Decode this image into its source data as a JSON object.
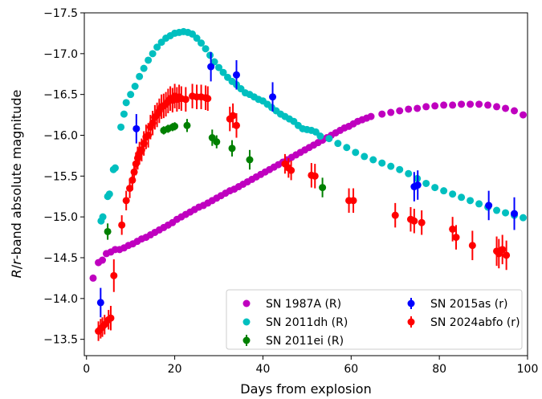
{
  "chart_data": {
    "type": "scatter",
    "xlabel": "Days from explosion",
    "ylabel_prefix": "R",
    "ylabel_sep": "/",
    "ylabel_band": "r",
    "ylabel_suffix": "-band absolute magnitude",
    "xlim": [
      -0.5,
      100
    ],
    "ylim": [
      -13.3,
      -17.5
    ],
    "y_inverted": true,
    "x_ticks": [
      0,
      20,
      40,
      60,
      80,
      100
    ],
    "x_tick_labels": [
      "0",
      "20",
      "40",
      "60",
      "80",
      "100"
    ],
    "y_ticks": [
      -13.5,
      -14.0,
      -14.5,
      -15.0,
      -15.5,
      -16.0,
      -16.5,
      -17.0,
      -17.5
    ],
    "y_tick_labels": [
      "−13.5",
      "−14.0",
      "−14.5",
      "−15.0",
      "−15.5",
      "−16.0",
      "−16.5",
      "−17.0",
      "−17.5"
    ],
    "grid": false,
    "legend_position": "lower-right",
    "series": [
      {
        "name": "SN 1987A (R)",
        "color": "#bf00bf",
        "x": [
          1.5,
          2.7,
          3.6,
          4.5,
          5.5,
          6.5,
          7.5,
          8.5,
          9.5,
          10.5,
          11.5,
          12.5,
          13.5,
          14.5,
          15.5,
          16.5,
          17.5,
          18.5,
          19.5,
          20.5,
          21.5,
          22.5,
          23.5,
          24.5,
          25.5,
          26.5,
          27.5,
          28.5,
          29.5,
          30.5,
          31.5,
          32.5,
          33.5,
          34.5,
          35.5,
          36.5,
          37.5,
          38.5,
          39.5,
          40.5,
          41.5,
          42.5,
          43.5,
          44.5,
          45.5,
          46.5,
          47.5,
          48.5,
          49.5,
          50.5,
          51.5,
          52.5,
          53.5,
          54.5,
          55.5,
          56.5,
          57.5,
          58.5,
          59.5,
          60.5,
          61.5,
          62.5,
          63.5,
          64.5,
          67,
          69,
          71,
          73,
          75,
          77,
          79,
          81,
          83,
          85,
          87,
          89,
          91,
          93,
          95,
          97,
          99
        ],
        "y": [
          -14.25,
          -14.44,
          -14.47,
          -14.55,
          -14.57,
          -14.6,
          -14.6,
          -14.62,
          -14.65,
          -14.67,
          -14.7,
          -14.73,
          -14.75,
          -14.78,
          -14.81,
          -14.84,
          -14.87,
          -14.9,
          -14.93,
          -14.97,
          -15.0,
          -15.03,
          -15.06,
          -15.09,
          -15.12,
          -15.14,
          -15.17,
          -15.2,
          -15.23,
          -15.26,
          -15.29,
          -15.32,
          -15.34,
          -15.37,
          -15.4,
          -15.43,
          -15.46,
          -15.49,
          -15.52,
          -15.55,
          -15.58,
          -15.61,
          -15.64,
          -15.67,
          -15.7,
          -15.73,
          -15.76,
          -15.79,
          -15.82,
          -15.85,
          -15.88,
          -15.91,
          -15.94,
          -15.97,
          -16.0,
          -16.03,
          -16.06,
          -16.09,
          -16.11,
          -16.14,
          -16.17,
          -16.19,
          -16.21,
          -16.23,
          -16.26,
          -16.28,
          -16.3,
          -16.32,
          -16.33,
          -16.35,
          -16.36,
          -16.37,
          -16.37,
          -16.38,
          -16.38,
          -16.38,
          -16.37,
          -16.35,
          -16.33,
          -16.3,
          -16.25
        ]
      },
      {
        "name": "SN 2011dh (R)",
        "color": "#00bfbf",
        "x": [
          3.3,
          3.7,
          4.8,
          5.2,
          6.1,
          6.5,
          7.8,
          8.5,
          9.0,
          10.0,
          11.0,
          12.0,
          13.0,
          14.0,
          15.0,
          16.0,
          17.0,
          18.0,
          19.0,
          20.0,
          21.0,
          22.0,
          23.0,
          24.0,
          25.0,
          26.0,
          27.0,
          28.0,
          29.0,
          30.0,
          31.0,
          32.0,
          33.0,
          34.0,
          35.0,
          36.0,
          37.0,
          38.0,
          39.0,
          40.0,
          41.0,
          42.0,
          43.0,
          44.0,
          45.0,
          46.0,
          47.0,
          48.0,
          49.0,
          50.0,
          51.0,
          52.0,
          53.0,
          55.0,
          57.0,
          59.0,
          61.0,
          63.0,
          65.0,
          67.0,
          69.0,
          71.0,
          73.0,
          75.0,
          77.0,
          79.0,
          81.0,
          83.0,
          85.0,
          87.0,
          89.0,
          91.0,
          93.0,
          95.0,
          97.0,
          99.0
        ],
        "y": [
          -14.95,
          -15.0,
          -15.25,
          -15.28,
          -15.58,
          -15.6,
          -16.1,
          -16.26,
          -16.4,
          -16.5,
          -16.6,
          -16.72,
          -16.82,
          -16.92,
          -17.0,
          -17.08,
          -17.14,
          -17.19,
          -17.22,
          -17.25,
          -17.26,
          -17.27,
          -17.26,
          -17.24,
          -17.19,
          -17.13,
          -17.06,
          -16.98,
          -16.9,
          -16.83,
          -16.77,
          -16.71,
          -16.66,
          -16.62,
          -16.57,
          -16.52,
          -16.5,
          -16.47,
          -16.44,
          -16.42,
          -16.38,
          -16.34,
          -16.3,
          -16.26,
          -16.23,
          -16.2,
          -16.17,
          -16.12,
          -16.08,
          -16.07,
          -16.06,
          -16.04,
          -15.99,
          -15.96,
          -15.9,
          -15.85,
          -15.79,
          -15.74,
          -15.7,
          -15.66,
          -15.62,
          -15.58,
          -15.53,
          -15.47,
          -15.41,
          -15.36,
          -15.32,
          -15.28,
          -15.24,
          -15.2,
          -15.16,
          -15.12,
          -15.08,
          -15.05,
          -15.02,
          -14.99
        ]
      },
      {
        "name": "SN 2011ei (R)",
        "color": "#008000",
        "x": [
          4.8,
          17.5,
          18.5,
          19.5,
          20.0,
          22.8,
          28.5,
          29.5,
          33.0,
          37.0,
          53.5
        ],
        "y": [
          -14.82,
          -16.06,
          -16.08,
          -16.1,
          -16.11,
          -16.12,
          -15.97,
          -15.92,
          -15.84,
          -15.7,
          -15.36
        ],
        "err": [
          0.1,
          0.05,
          0.05,
          0.05,
          0.05,
          0.08,
          0.1,
          0.08,
          0.1,
          0.12,
          0.12
        ]
      },
      {
        "name": "SN 2015as (r)",
        "color": "#0000ff",
        "x": [
          3.2,
          11.3,
          28.2,
          34.0,
          42.2,
          74.3,
          75.1,
          91.2,
          97.0
        ],
        "y": [
          -13.95,
          -16.08,
          -16.84,
          -16.74,
          -16.47,
          -15.37,
          -15.39,
          -15.14,
          -15.04
        ],
        "err": [
          0.18,
          0.18,
          0.18,
          0.18,
          0.18,
          0.18,
          0.18,
          0.18,
          0.2
        ]
      },
      {
        "name": "SN 2024abfo (r)",
        "color": "#ff0000",
        "x": [
          2.7,
          3.2,
          3.6,
          4.1,
          5.0,
          5.5,
          6.2,
          8.0,
          9.0,
          9.8,
          10.4,
          10.8,
          11.2,
          11.6,
          12.0,
          12.5,
          13.0,
          13.5,
          14.0,
          14.5,
          15.0,
          15.5,
          16.0,
          16.5,
          17.0,
          17.5,
          18.0,
          18.5,
          19.0,
          19.5,
          20.0,
          20.5,
          21.0,
          21.5,
          22.5,
          24.0,
          25.0,
          26.0,
          27.0,
          27.5,
          32.5,
          33.2,
          34.0,
          45.0,
          45.8,
          46.4,
          51.0,
          51.8,
          59.5,
          60.5,
          70.0,
          73.5,
          74.3,
          76.0,
          83.0,
          83.8,
          87.5,
          93.0,
          93.5,
          94.3,
          95.2
        ],
        "y": [
          -13.6,
          -13.63,
          -13.65,
          -13.68,
          -13.74,
          -13.76,
          -14.28,
          -14.9,
          -15.2,
          -15.35,
          -15.45,
          -15.55,
          -15.65,
          -15.72,
          -15.78,
          -15.82,
          -15.9,
          -15.98,
          -16.0,
          -16.1,
          -16.15,
          -16.22,
          -16.25,
          -16.3,
          -16.35,
          -16.36,
          -16.38,
          -16.42,
          -16.45,
          -16.43,
          -16.48,
          -16.44,
          -16.47,
          -16.45,
          -16.44,
          -16.48,
          -16.47,
          -16.47,
          -16.46,
          -16.45,
          -16.2,
          -16.24,
          -16.12,
          -15.65,
          -15.6,
          -15.57,
          -15.51,
          -15.5,
          -15.2,
          -15.2,
          -15.02,
          -14.97,
          -14.95,
          -14.93,
          -14.85,
          -14.75,
          -14.65,
          -14.58,
          -14.55,
          -14.6,
          -14.53
        ],
        "err": [
          0.12,
          0.12,
          0.12,
          0.12,
          0.12,
          0.15,
          0.2,
          0.12,
          0.12,
          0.12,
          0.12,
          0.12,
          0.14,
          0.14,
          0.14,
          0.14,
          0.15,
          0.15,
          0.15,
          0.15,
          0.15,
          0.15,
          0.15,
          0.15,
          0.15,
          0.15,
          0.15,
          0.15,
          0.15,
          0.15,
          0.15,
          0.15,
          0.15,
          0.15,
          0.15,
          0.15,
          0.15,
          0.15,
          0.15,
          0.15,
          0.15,
          0.15,
          0.15,
          0.12,
          0.12,
          0.12,
          0.15,
          0.15,
          0.15,
          0.15,
          0.15,
          0.15,
          0.15,
          0.15,
          0.15,
          0.15,
          0.18,
          0.18,
          0.18,
          0.18,
          0.18
        ]
      }
    ]
  }
}
